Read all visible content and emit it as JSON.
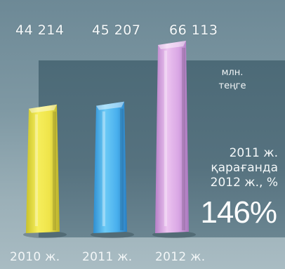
{
  "chart_data": {
    "type": "bar",
    "categories": [
      "2010 ж.",
      "2011 ж.",
      "2012 ж."
    ],
    "values": [
      44214,
      45207,
      66113
    ],
    "value_labels": [
      "44 214",
      "45 207",
      "66 113"
    ],
    "unit_label": [
      "млн.",
      "теңге"
    ],
    "annotation_lines": [
      "2011 ж.",
      "қарағанда",
      "2012 ж., %"
    ],
    "annotation_value": "146%",
    "colors": [
      "#f2e84a",
      "#4cb4ef",
      "#d9a4e4"
    ]
  }
}
